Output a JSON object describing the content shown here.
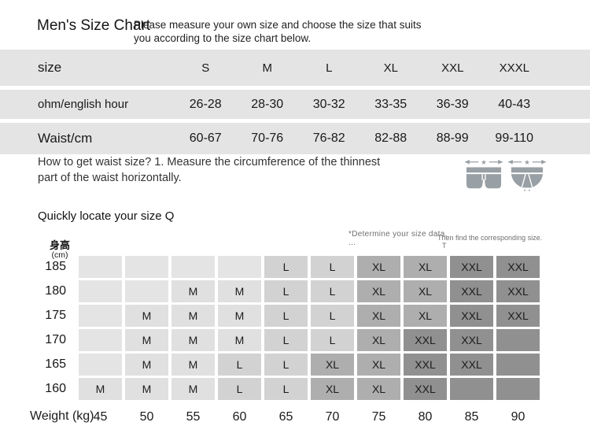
{
  "page": {
    "title": "Men's Size Chart",
    "intro_note": "Please measure your own size and choose the size that suits you according to the size chart below."
  },
  "size_table": {
    "rows": [
      {
        "label": "size",
        "values": [
          "S",
          "M",
          "L",
          "XL",
          "XXL",
          "XXXL"
        ]
      },
      {
        "label": "ohm/english hour",
        "values": [
          "26-28",
          "28-30",
          "30-32",
          "33-35",
          "36-39",
          "40-43"
        ]
      },
      {
        "label": "Waist/cm",
        "values": [
          "60-67",
          "70-76",
          "76-82",
          "82-88",
          "88-99",
          "99-110"
        ]
      }
    ]
  },
  "waist_help": {
    "text": "How to get waist size? 1. Measure the circumference of the thinnest part of the waist horizontally.",
    "icons": [
      "boxer-briefs-icon",
      "briefs-icon"
    ]
  },
  "size_finder": {
    "title": "Quickly locate your size Q",
    "note_left": "*Determine your size data,",
    "note_left_2": "...",
    "note_right": "Then find the corresponding size.",
    "note_right_2": "T",
    "y_axis_label": "身高",
    "y_axis_unit": "(cm)",
    "heights": [
      "185",
      "180",
      "175",
      "170",
      "165",
      "160"
    ],
    "grid": [
      [
        "",
        "",
        "",
        "",
        "L",
        "L",
        "XL",
        "XL",
        "XXL",
        "XXL"
      ],
      [
        "",
        "",
        "M",
        "M",
        "L",
        "L",
        "XL",
        "XL",
        "XXL",
        "XXL"
      ],
      [
        "",
        "M",
        "M",
        "M",
        "L",
        "L",
        "XL",
        "XL",
        "XXL",
        "XXL"
      ],
      [
        "",
        "M",
        "M",
        "M",
        "L",
        "L",
        "XL",
        "XXL",
        "XXL",
        "*"
      ],
      [
        "",
        "M",
        "M",
        "L",
        "L",
        "XL",
        "XL",
        "XXL",
        "XXL",
        "*"
      ],
      [
        "M",
        "M",
        "M",
        "L",
        "L",
        "XL",
        "XL",
        "XXL",
        "*",
        "*"
      ]
    ],
    "weight_label": "Weight (kg)",
    "weights": [
      "45",
      "50",
      "55",
      "60",
      "65",
      "70",
      "75",
      "80",
      "85",
      "90"
    ]
  },
  "colors": {
    "band_bg": "#e4e4e4",
    "cell_empty": "#e4e4e4",
    "cell_m": "#e0e0e0",
    "cell_l": "#d2d2d2",
    "cell_xl": "#aeaeae",
    "cell_xxl": "#909090",
    "cell_dark": "#909090",
    "icon_gray": "#98a0a5",
    "note_gray": "#6f6f6f"
  }
}
